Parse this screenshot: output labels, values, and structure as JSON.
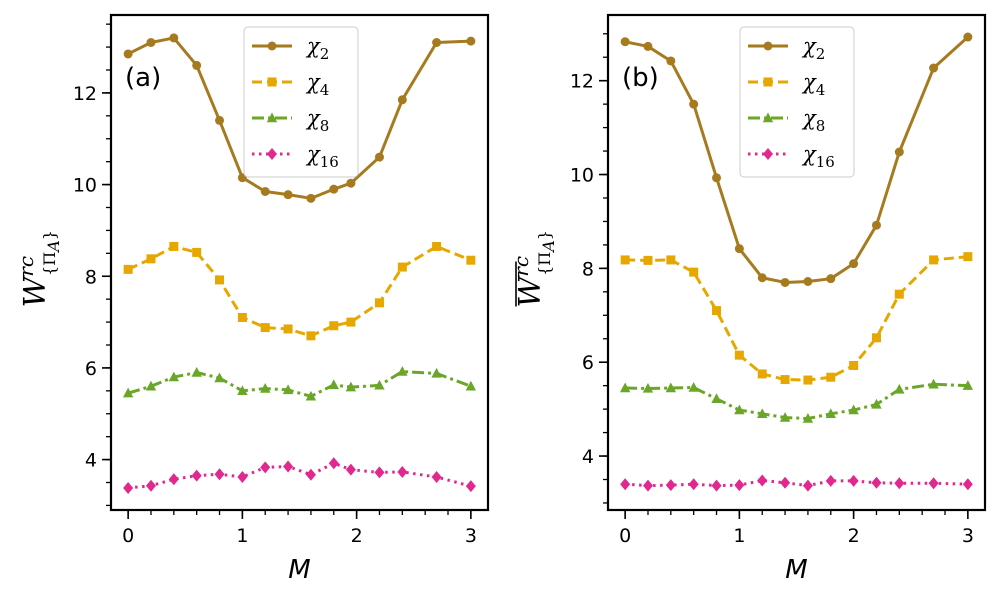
{
  "chart_data": [
    {
      "type": "line",
      "panel_label": "(a)",
      "xlabel": "M",
      "ylabel": {
        "main": "W",
        "sup": "rc",
        "sub": "{Π",
        "sub_italic": "A",
        "sub_end": "}",
        "overline": false
      },
      "xlim": [
        -0.15,
        3.15
      ],
      "ylim": [
        2.9,
        13.7
      ],
      "xticks": [
        "0",
        "1",
        "2",
        "3"
      ],
      "xtick_values": [
        0,
        1,
        2,
        3
      ],
      "yticks": [
        "4",
        "6",
        "8",
        "10",
        "12"
      ],
      "ytick_values": [
        4,
        6,
        8,
        10,
        12
      ],
      "legend_position": "top-center",
      "series": [
        {
          "name": "χ",
          "sub": "2",
          "color": "#a67a1f",
          "dash": "solid",
          "marker": "circle",
          "x": [
            0,
            0.2,
            0.4,
            0.6,
            0.8,
            1.0,
            1.2,
            1.4,
            1.6,
            1.8,
            1.95,
            2.2,
            2.4,
            2.7,
            3.0
          ],
          "y": [
            12.85,
            13.1,
            13.2,
            12.6,
            11.4,
            10.15,
            9.85,
            9.78,
            9.7,
            9.9,
            10.03,
            10.6,
            11.85,
            13.1,
            13.13
          ]
        },
        {
          "name": "χ",
          "sub": "4",
          "color": "#e6a800",
          "dash": "dashed",
          "marker": "square",
          "x": [
            0,
            0.2,
            0.4,
            0.6,
            0.8,
            1.0,
            1.2,
            1.4,
            1.6,
            1.8,
            1.95,
            2.2,
            2.4,
            2.7,
            3.0
          ],
          "y": [
            8.15,
            8.38,
            8.65,
            8.52,
            7.92,
            7.1,
            6.88,
            6.85,
            6.7,
            6.92,
            7.0,
            7.42,
            8.2,
            8.65,
            8.35
          ]
        },
        {
          "name": "χ",
          "sub": "8",
          "color": "#6aa628",
          "dash": "dashdot",
          "marker": "triangle",
          "x": [
            0,
            0.2,
            0.4,
            0.6,
            0.8,
            1.0,
            1.2,
            1.4,
            1.6,
            1.8,
            1.95,
            2.2,
            2.4,
            2.7,
            3.0
          ],
          "y": [
            5.45,
            5.6,
            5.8,
            5.9,
            5.78,
            5.5,
            5.55,
            5.52,
            5.38,
            5.63,
            5.58,
            5.62,
            5.92,
            5.88,
            5.6
          ]
        },
        {
          "name": "χ",
          "sub": "16",
          "color": "#e0288e",
          "dash": "dotted",
          "marker": "diamond",
          "x": [
            0,
            0.2,
            0.4,
            0.6,
            0.8,
            1.0,
            1.2,
            1.4,
            1.6,
            1.8,
            1.95,
            2.2,
            2.4,
            2.7,
            3.0
          ],
          "y": [
            3.38,
            3.43,
            3.57,
            3.65,
            3.68,
            3.62,
            3.83,
            3.85,
            3.67,
            3.92,
            3.78,
            3.72,
            3.73,
            3.62,
            3.42
          ]
        }
      ]
    },
    {
      "type": "line",
      "panel_label": "(b)",
      "xlabel": "M",
      "ylabel": {
        "main": "W",
        "sup": "rc",
        "sub": "{Π",
        "sub_italic": "A",
        "sub_end": "}",
        "overline": true
      },
      "xlim": [
        -0.15,
        3.15
      ],
      "ylim": [
        2.85,
        13.4
      ],
      "xticks": [
        "0",
        "1",
        "2",
        "3"
      ],
      "xtick_values": [
        0,
        1,
        2,
        3
      ],
      "yticks": [
        "4",
        "6",
        "8",
        "10",
        "12"
      ],
      "ytick_values": [
        4,
        6,
        8,
        10,
        12
      ],
      "legend_position": "top-center",
      "series": [
        {
          "name": "χ",
          "sub": "2",
          "color": "#a67a1f",
          "dash": "solid",
          "marker": "circle",
          "x": [
            0,
            0.2,
            0.4,
            0.6,
            0.8,
            1.0,
            1.2,
            1.4,
            1.6,
            1.8,
            2.0,
            2.2,
            2.4,
            2.7,
            3.0
          ],
          "y": [
            12.83,
            12.73,
            12.42,
            11.5,
            9.93,
            8.42,
            7.8,
            7.7,
            7.72,
            7.78,
            8.1,
            8.92,
            10.48,
            12.27,
            12.93
          ]
        },
        {
          "name": "χ",
          "sub": "4",
          "color": "#e6a800",
          "dash": "dashed",
          "marker": "square",
          "x": [
            0,
            0.2,
            0.4,
            0.6,
            0.8,
            1.0,
            1.2,
            1.4,
            1.6,
            1.8,
            2.0,
            2.2,
            2.4,
            2.7,
            3.0
          ],
          "y": [
            8.18,
            8.17,
            8.18,
            7.92,
            7.1,
            6.15,
            5.75,
            5.63,
            5.62,
            5.68,
            5.93,
            6.52,
            7.45,
            8.18,
            8.25
          ]
        },
        {
          "name": "χ",
          "sub": "8",
          "color": "#6aa628",
          "dash": "dashdot",
          "marker": "triangle",
          "x": [
            0,
            0.2,
            0.4,
            0.6,
            0.8,
            1.0,
            1.2,
            1.4,
            1.6,
            1.8,
            2.0,
            2.2,
            2.4,
            2.7,
            3.0
          ],
          "y": [
            5.45,
            5.44,
            5.45,
            5.46,
            5.22,
            4.98,
            4.9,
            4.82,
            4.8,
            4.9,
            4.98,
            5.1,
            5.42,
            5.53,
            5.5
          ]
        },
        {
          "name": "χ",
          "sub": "16",
          "color": "#e0288e",
          "dash": "dotted",
          "marker": "diamond",
          "x": [
            0,
            0.2,
            0.4,
            0.6,
            0.8,
            1.0,
            1.2,
            1.4,
            1.6,
            1.8,
            2.0,
            2.2,
            2.4,
            2.7,
            3.0
          ],
          "y": [
            3.4,
            3.37,
            3.38,
            3.4,
            3.37,
            3.38,
            3.48,
            3.43,
            3.37,
            3.47,
            3.47,
            3.43,
            3.42,
            3.42,
            3.4
          ]
        }
      ]
    }
  ]
}
